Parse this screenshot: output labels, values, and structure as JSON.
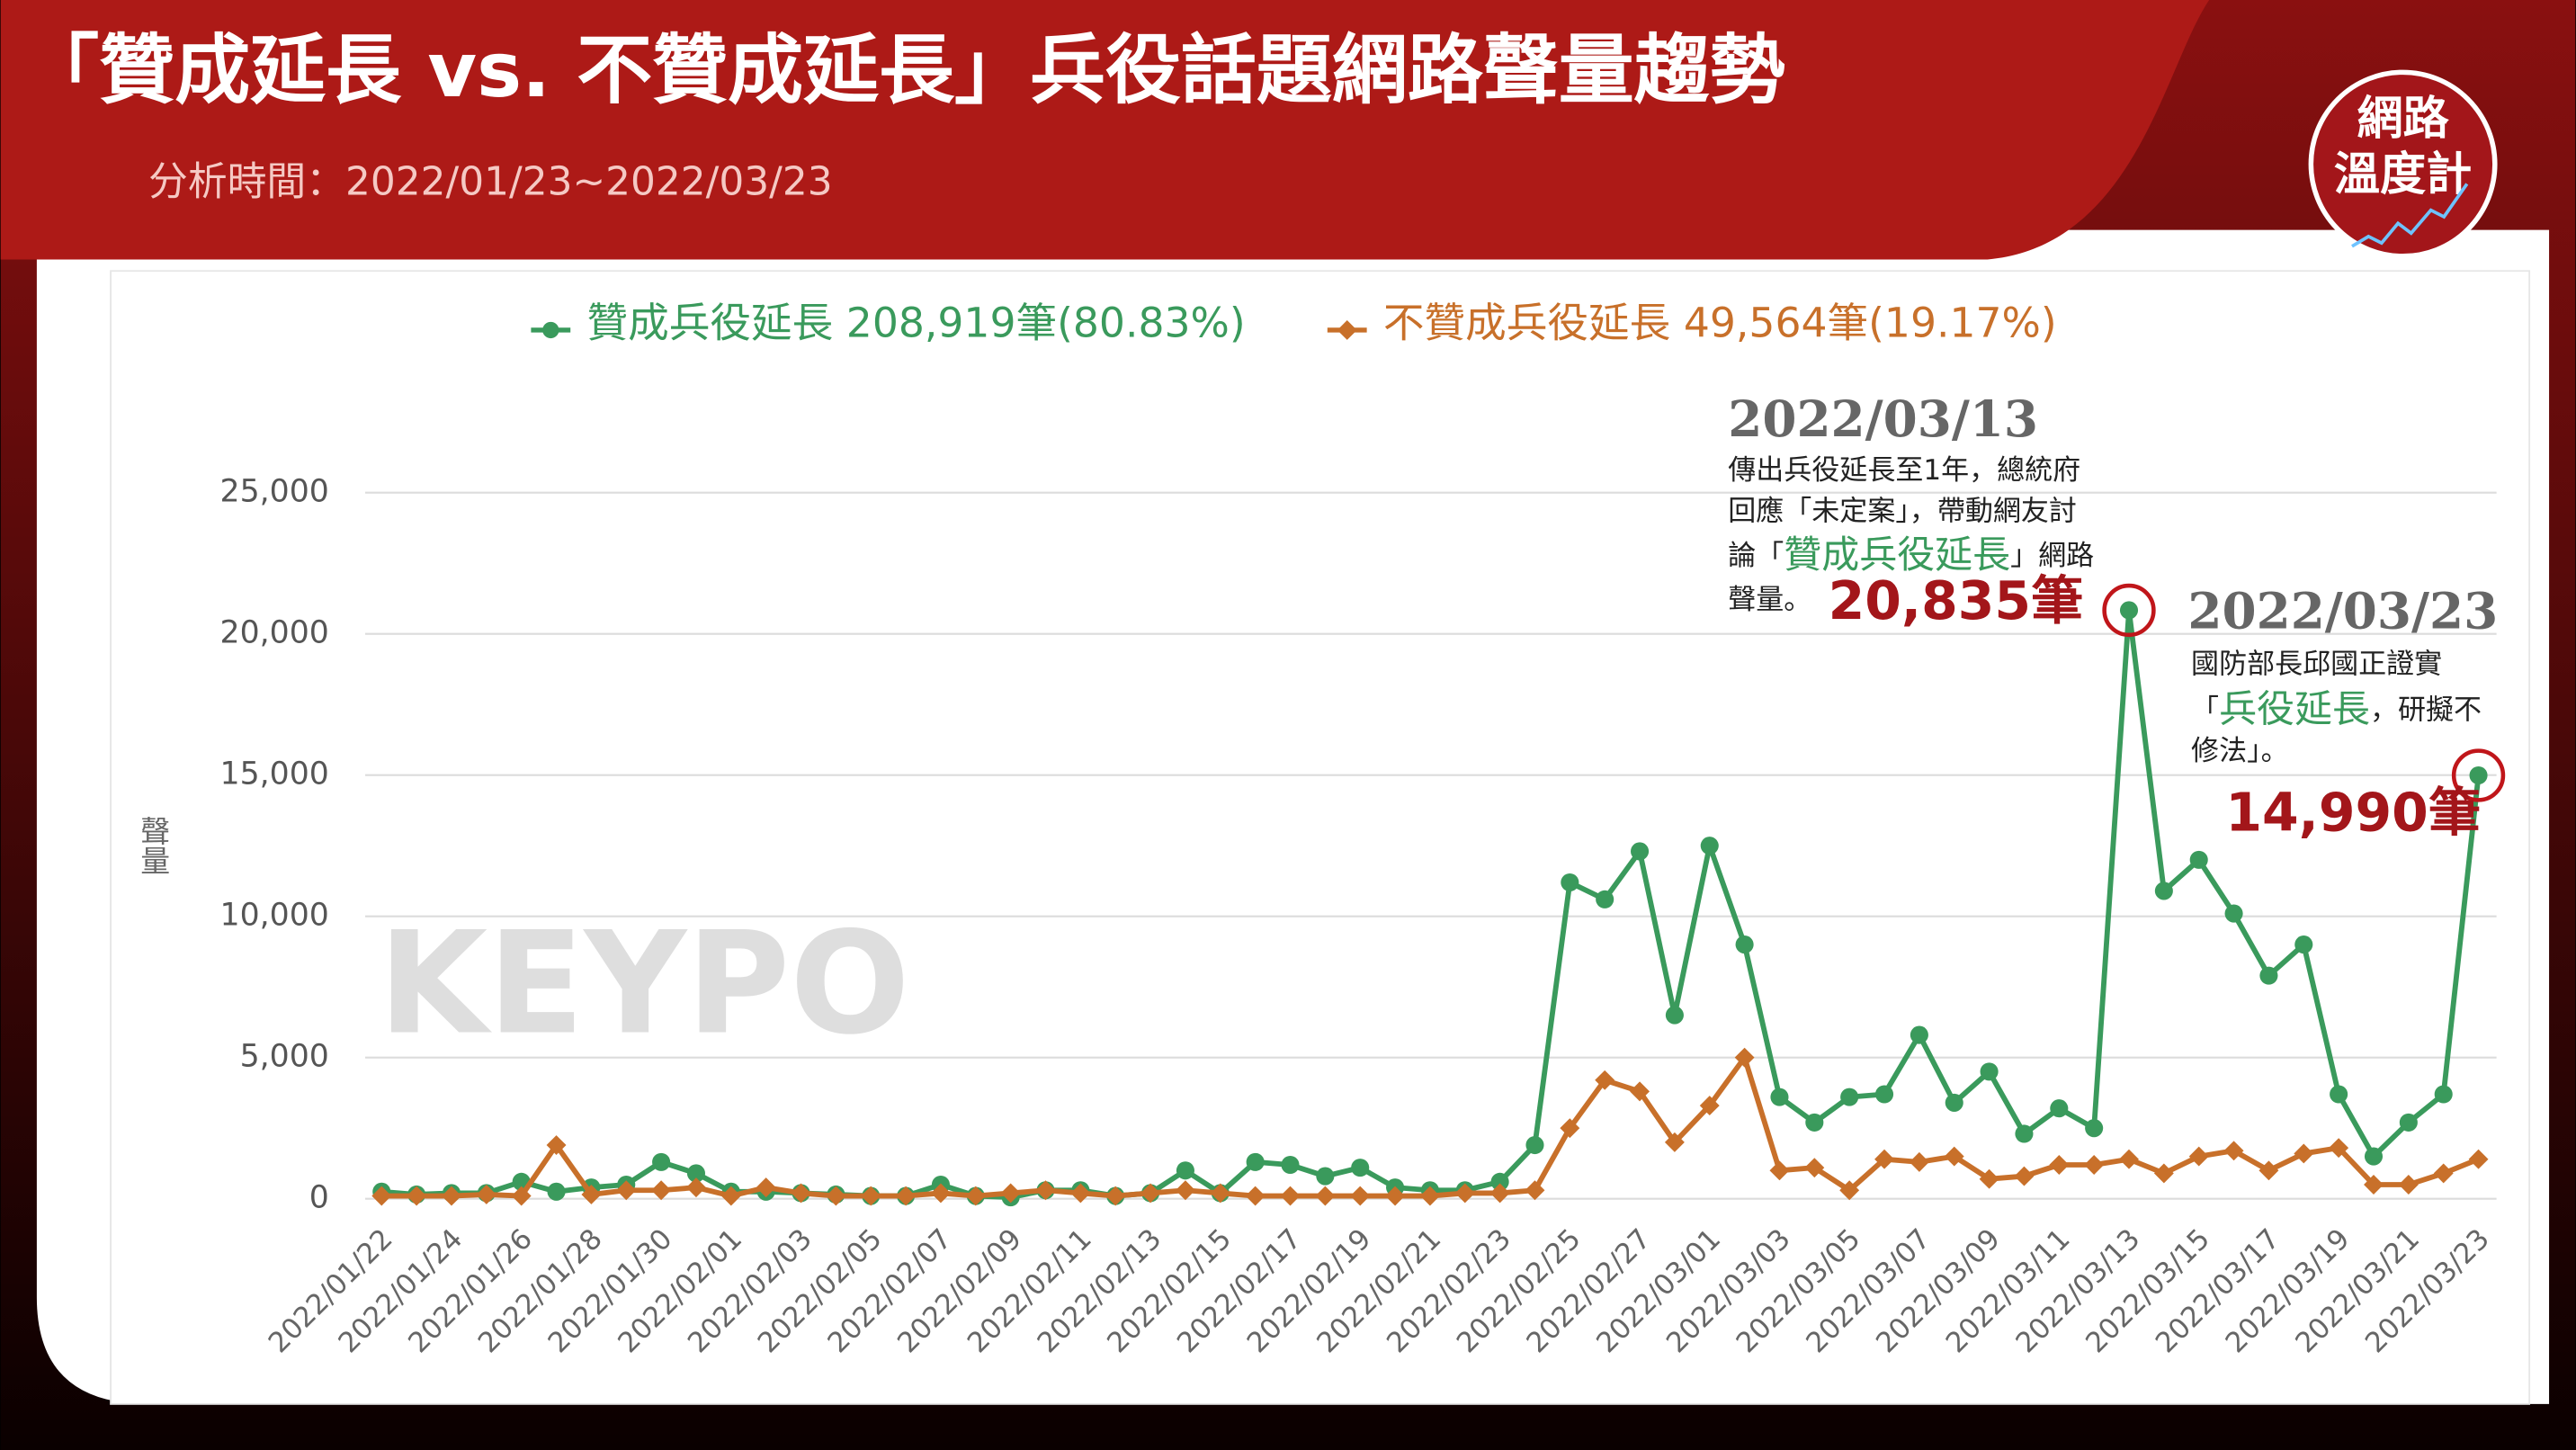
{
  "title": "「贊成延長 vs. 不贊成延長」兵役話題網路聲量趨勢",
  "subtitle": "分析時間：2022/01/23~2022/03/23",
  "logo": [
    "網路",
    "溫度計"
  ],
  "chart_data": {
    "type": "line",
    "y_label": "聲量",
    "watermark": "KEYPO",
    "grid": true,
    "ylim": [
      0,
      25000
    ],
    "yticks": [
      0,
      {
        "value": 5000,
        "label": "5,000"
      },
      {
        "value": 10000,
        "label": "10,000"
      },
      {
        "value": 15000,
        "label": "15,000"
      },
      {
        "value": 20000,
        "label": "20,000"
      },
      {
        "value": 25000,
        "label": "25,000"
      }
    ],
    "categories": [
      "2022/01/22",
      null,
      "2022/01/24",
      null,
      "2022/01/26",
      null,
      "2022/01/28",
      null,
      "2022/01/30",
      null,
      "2022/02/01",
      null,
      "2022/02/03",
      null,
      "2022/02/05",
      null,
      "2022/02/07",
      null,
      "2022/02/09",
      null,
      "2022/02/11",
      null,
      "2022/02/13",
      null,
      "2022/02/15",
      null,
      "2022/02/17",
      null,
      "2022/02/19",
      null,
      "2022/02/21",
      null,
      "2022/02/23",
      null,
      "2022/02/25",
      null,
      "2022/02/27",
      null,
      "2022/03/01",
      null,
      "2022/03/03",
      null,
      "2022/03/05",
      null,
      "2022/03/07",
      null,
      "2022/03/09",
      null,
      "2022/03/11",
      null,
      "2022/03/13",
      null,
      "2022/03/15",
      null,
      "2022/03/17",
      null,
      "2022/03/19",
      null,
      "2022/03/21",
      null,
      "2022/03/23"
    ],
    "series": [
      {
        "name": "贊成兵役延長",
        "total_label": "208,919筆(80.83%)",
        "color": "#3a9a5c",
        "marker": "circle",
        "values": [
          250,
          150,
          200,
          200,
          600,
          250,
          400,
          500,
          1300,
          900,
          250,
          250,
          200,
          150,
          100,
          100,
          500,
          100,
          50,
          300,
          300,
          100,
          200,
          1000,
          200,
          1300,
          1200,
          800,
          1100,
          400,
          300,
          300,
          600,
          1900,
          11200,
          10600,
          12300,
          6500,
          12500,
          9000,
          3600,
          2700,
          3600,
          3700,
          5800,
          3400,
          4500,
          2300,
          3200,
          2500,
          20835,
          10900,
          12000,
          10100,
          7900,
          9000,
          3700,
          1500,
          2700,
          3700,
          14990
        ]
      },
      {
        "name": "不贊成兵役延長",
        "total_label": "49,564筆(19.17%)",
        "color": "#c8702a",
        "marker": "diamond",
        "values": [
          100,
          100,
          100,
          150,
          100,
          1900,
          150,
          300,
          300,
          400,
          100,
          400,
          200,
          100,
          100,
          100,
          200,
          100,
          200,
          300,
          200,
          100,
          200,
          300,
          200,
          100,
          100,
          100,
          100,
          100,
          100,
          200,
          200,
          300,
          2500,
          4200,
          3800,
          2000,
          3300,
          5000,
          1000,
          1100,
          300,
          1400,
          1300,
          1500,
          700,
          800,
          1200,
          1200,
          1400,
          900,
          1500,
          1700,
          1000,
          1600,
          1800,
          500,
          500,
          900,
          1400
        ]
      }
    ],
    "annotations": [
      {
        "date": "2022/03/13",
        "series": 0,
        "index": 50,
        "label": "20,835筆",
        "lines": [
          [
            {
              "text": "傳出兵役延長至1年，總統府"
            }
          ],
          [
            {
              "text": "回應「未定案」，帶動網友討"
            }
          ],
          [
            {
              "text": "論「"
            },
            {
              "text": "贊成兵役延長",
              "highlight": true
            },
            {
              "text": "」網路"
            }
          ],
          [
            {
              "text": "聲量。"
            }
          ]
        ]
      },
      {
        "date": "2022/03/23",
        "series": 0,
        "index": 60,
        "label": "14,990筆",
        "lines": [
          [
            {
              "text": "國防部長邱國正證實"
            }
          ],
          [
            {
              "text": "「"
            },
            {
              "text": "兵役延長",
              "highlight": true
            },
            {
              "text": "，研擬不"
            }
          ],
          [
            {
              "text": "修法」。"
            }
          ]
        ]
      }
    ]
  }
}
